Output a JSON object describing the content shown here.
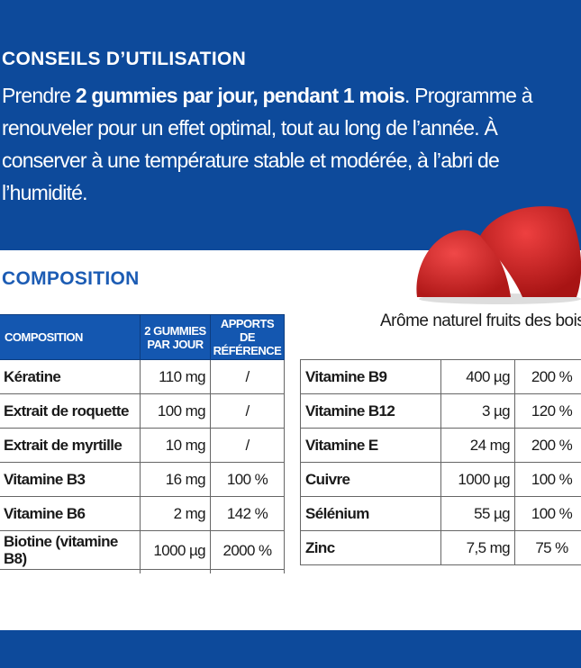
{
  "usage": {
    "title": "CONSEILS D’UTILISATION",
    "text_pre": "Prendre ",
    "text_bold": "2 gummies par jour, pendant 1 mois",
    "text_line1_post": ". Programme à",
    "text_line2": "renouveler pour un effet optimal, tout au long de l’année. À conserver",
    "text_line3": "à une température stable et modérée, à l’abri de l’humidité."
  },
  "composition": {
    "title": "COMPOSITION",
    "flavor": "Arôme naturel fruits des bois",
    "headers": [
      "COMPOSITION",
      "2 GUMMIES PAR JOUR",
      "APPORTS DE RÉFÉRENCE"
    ],
    "left_rows": [
      [
        "Kératine",
        "110 mg",
        "/"
      ],
      [
        "Extrait de roquette",
        "100 mg",
        "/"
      ],
      [
        "Extrait de myrtille",
        "10 mg",
        "/"
      ],
      [
        "Vitamine B3",
        "16 mg",
        "100 %"
      ],
      [
        "Vitamine B6",
        "2 mg",
        "142 %"
      ],
      [
        "Biotine (vitamine B8)",
        "1000 µg",
        "2000 %"
      ]
    ],
    "right_rows": [
      [
        "Vitamine B9",
        "400 µg",
        "200 %"
      ],
      [
        "Vitamine B12",
        "3 µg",
        "120 %"
      ],
      [
        "Vitamine E",
        "24 mg",
        "200 %"
      ],
      [
        "Cuivre",
        "1000 µg",
        "100 %"
      ],
      [
        "Sélénium",
        "55 µg",
        "100 %"
      ],
      [
        "Zinc",
        "7,5 mg",
        "75 %"
      ]
    ]
  },
  "colors": {
    "brand_blue": "#0d4a9b",
    "heading_blue": "#1c5cb4",
    "gummy_red": "#d42a2a"
  }
}
